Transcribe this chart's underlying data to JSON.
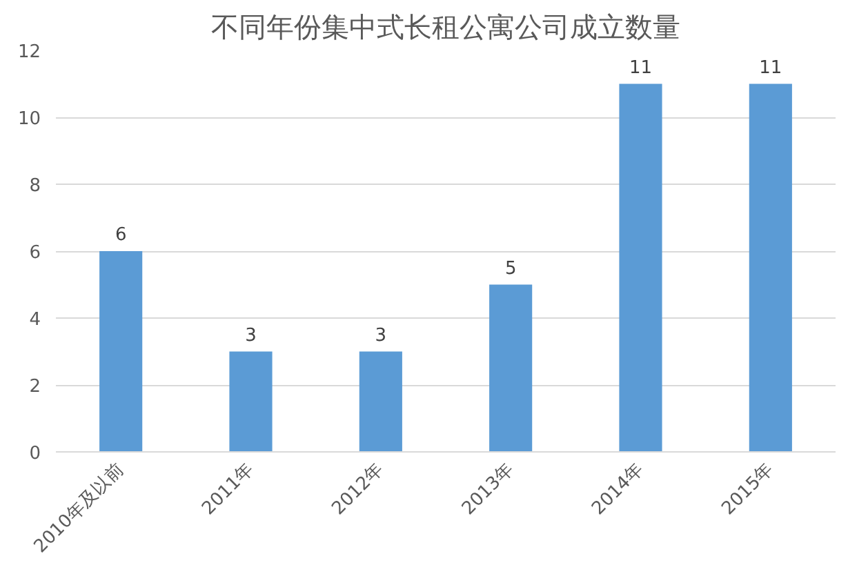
{
  "chart_data": {
    "type": "bar",
    "title": "不同年份集中式长租公寓公司成立数量",
    "categories": [
      "2010年及以前",
      "2011年",
      "2012年",
      "2013年",
      "2014年",
      "2015年"
    ],
    "values": [
      6,
      3,
      3,
      5,
      11,
      11
    ],
    "color": "#5b9bd5",
    "ylim": [
      0,
      12
    ],
    "yticks": [
      0,
      2,
      4,
      6,
      8,
      10,
      12
    ],
    "grid": "y",
    "data_labels": true
  }
}
